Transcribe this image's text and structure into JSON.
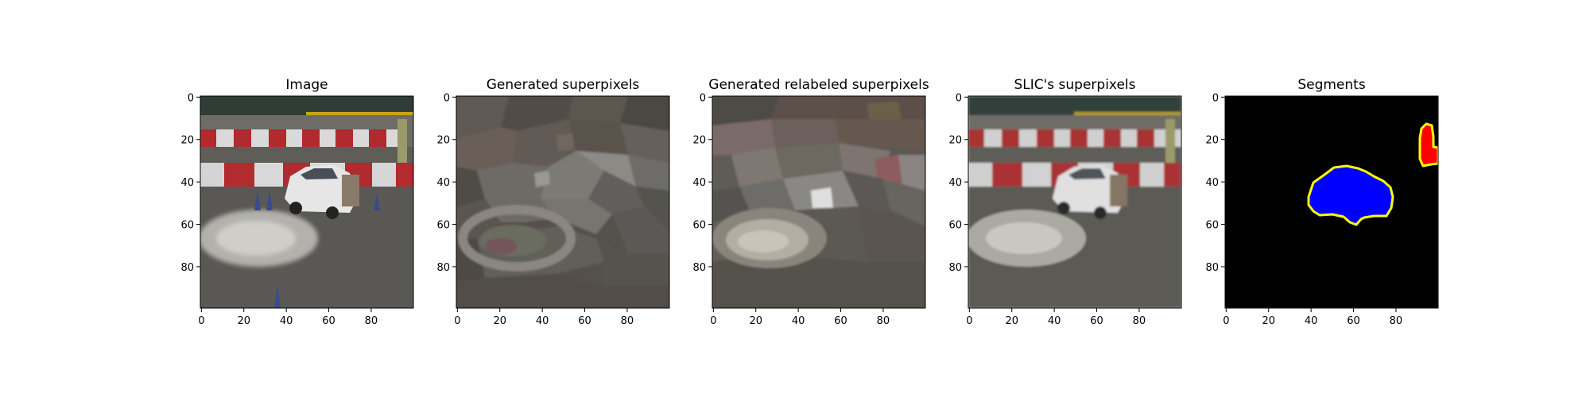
{
  "figure": {
    "panels": [
      {
        "title": "Image"
      },
      {
        "title": "Generated superpixels"
      },
      {
        "title": "Generated relabeled superpixels"
      },
      {
        "title": "SLIC's superpixels"
      },
      {
        "title": "Segments"
      }
    ],
    "x_ticks": [
      "0",
      "20",
      "40",
      "60",
      "80"
    ],
    "y_ticks": [
      "0",
      "20",
      "40",
      "60",
      "80"
    ],
    "colors": {
      "sky_dark": "#2e3b34",
      "barrier_red": "#b02a2e",
      "barrier_white": "#d9d9d9",
      "banner_yellow": "#c7a41a",
      "asphalt": "#5a5956",
      "car_white": "#e8e8e8",
      "segment_bg": "#000000",
      "segment_car": "#0000ff",
      "segment_red": "#ff0000",
      "segment_edge": "#ffff00"
    }
  }
}
